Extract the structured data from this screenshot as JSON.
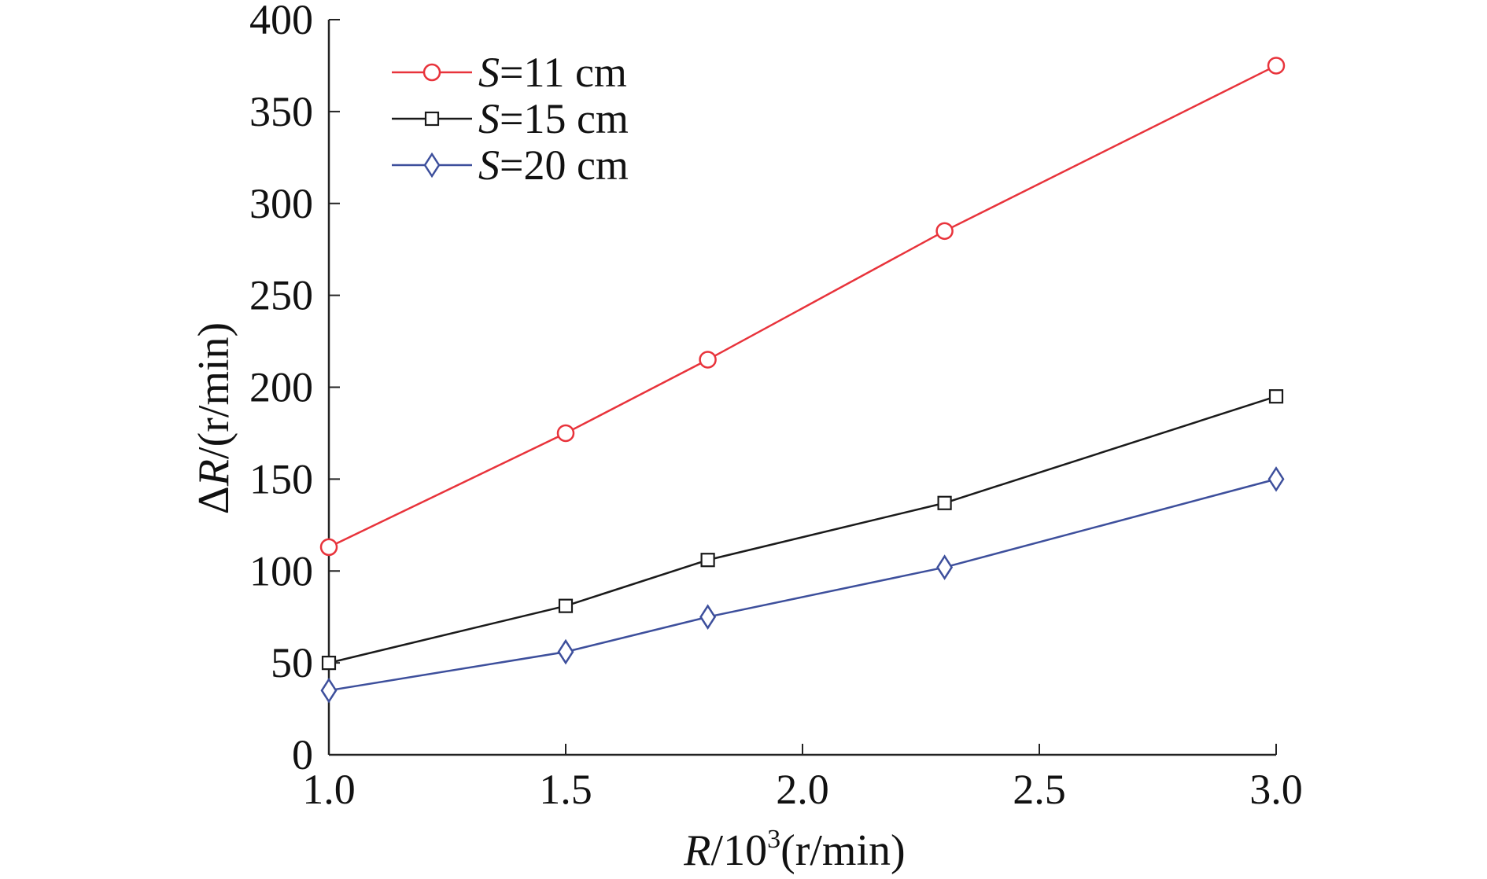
{
  "chart_data": {
    "type": "line",
    "xlabel": {
      "var": "R",
      "rest": "/10",
      "sup": "3",
      "unit": "(r/min)"
    },
    "ylabel": {
      "delta": "Δ",
      "var": "R",
      "unit": "/(r/min)"
    },
    "xlim": [
      1.0,
      3.0
    ],
    "ylim": [
      0,
      400
    ],
    "xticks": [
      "1.0",
      "1.5",
      "2.0",
      "2.5",
      "3.0"
    ],
    "xtick_values": [
      1.0,
      1.5,
      2.0,
      2.5,
      3.0
    ],
    "yticks": [
      "0",
      "50",
      "100",
      "150",
      "200",
      "250",
      "300",
      "350",
      "400"
    ],
    "ytick_values": [
      0,
      50,
      100,
      150,
      200,
      250,
      300,
      350,
      400
    ],
    "grid": false,
    "legend_position": "top-left",
    "x": [
      1.0,
      1.5,
      1.8,
      2.3,
      3.0
    ],
    "series": [
      {
        "name": "S=11 cm",
        "name_var": "S",
        "name_rest": "=11 cm",
        "color": "#e8333b",
        "marker": "circle",
        "values": [
          113,
          175,
          215,
          285,
          375
        ]
      },
      {
        "name": "S=15 cm",
        "name_var": "S",
        "name_rest": "=15 cm",
        "color": "#1a1a1a",
        "marker": "square",
        "values": [
          50,
          81,
          106,
          137,
          195
        ]
      },
      {
        "name": "S=20 cm",
        "name_var": "S",
        "name_rest": "=20 cm",
        "color": "#3d4f9c",
        "marker": "diamond",
        "values": [
          35,
          56,
          75,
          102,
          150
        ]
      }
    ]
  }
}
